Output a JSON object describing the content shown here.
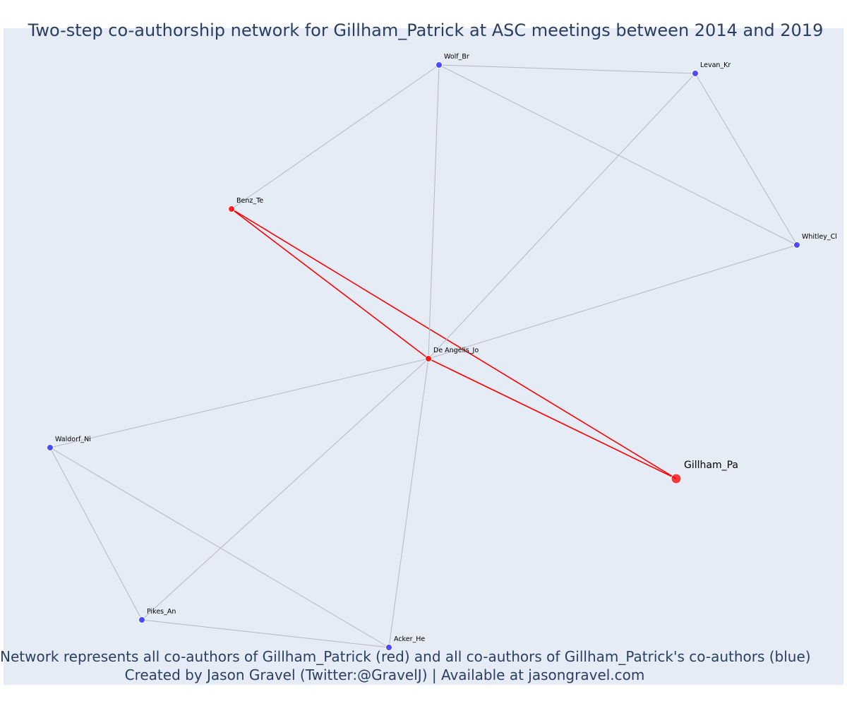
{
  "title": "Two-step co-authorship network for Gillham_Patrick at ASC meetings between 2014 and 2019",
  "caption": {
    "line1": "Network represents all co-authors of Gillham_Patrick (red) and all co-authors of Gillham_Patrick's co-authors (blue)",
    "line2": "Created by Jason Gravel (Twitter:@GravelJ) | Available at jasongravel.com"
  },
  "colors": {
    "first_step": "#ff0000",
    "second_step": "#3333ff",
    "edge_first": "#ff0000",
    "edge_second": "#b4b7c8"
  },
  "chart_data": {
    "type": "network",
    "nodes": [
      {
        "id": "Gillham_Pa",
        "label": "Gillham_Pa",
        "group": "focal"
      },
      {
        "id": "Benz_Te",
        "label": "Benz_Te",
        "group": "first_step"
      },
      {
        "id": "De Angelis_Jo",
        "label": "De Angelis_Jo",
        "group": "first_step"
      },
      {
        "id": "Wolf_Br",
        "label": "Wolf_Br",
        "group": "second_step"
      },
      {
        "id": "Levan_Kr",
        "label": "Levan_Kr",
        "group": "second_step"
      },
      {
        "id": "Whitley_Cl",
        "label": "Whitley_Cl",
        "group": "second_step"
      },
      {
        "id": "Waldorf_Ni",
        "label": "Waldorf_Ni",
        "group": "second_step"
      },
      {
        "id": "Pikes_An",
        "label": "Pikes_An",
        "group": "second_step"
      },
      {
        "id": "Acker_He",
        "label": "Acker_He",
        "group": "second_step"
      }
    ],
    "edges": [
      {
        "source": "Benz_Te",
        "target": "Gillham_Pa",
        "type": "first_step"
      },
      {
        "source": "Benz_Te",
        "target": "De Angelis_Jo",
        "type": "first_step"
      },
      {
        "source": "De Angelis_Jo",
        "target": "Gillham_Pa",
        "type": "first_step"
      },
      {
        "source": "Wolf_Br",
        "target": "Benz_Te",
        "type": "second_step"
      },
      {
        "source": "Wolf_Br",
        "target": "De Angelis_Jo",
        "type": "second_step"
      },
      {
        "source": "Wolf_Br",
        "target": "Levan_Kr",
        "type": "second_step"
      },
      {
        "source": "Wolf_Br",
        "target": "Whitley_Cl",
        "type": "second_step"
      },
      {
        "source": "Levan_Kr",
        "target": "Whitley_Cl",
        "type": "second_step"
      },
      {
        "source": "Levan_Kr",
        "target": "De Angelis_Jo",
        "type": "second_step"
      },
      {
        "source": "Whitley_Cl",
        "target": "De Angelis_Jo",
        "type": "second_step"
      },
      {
        "source": "Waldorf_Ni",
        "target": "De Angelis_Jo",
        "type": "second_step"
      },
      {
        "source": "Waldorf_Ni",
        "target": "Pikes_An",
        "type": "second_step"
      },
      {
        "source": "Waldorf_Ni",
        "target": "Acker_He",
        "type": "second_step"
      },
      {
        "source": "Pikes_An",
        "target": "De Angelis_Jo",
        "type": "second_step"
      },
      {
        "source": "Pikes_An",
        "target": "Acker_He",
        "type": "second_step"
      },
      {
        "source": "Acker_He",
        "target": "De Angelis_Jo",
        "type": "second_step"
      }
    ]
  }
}
